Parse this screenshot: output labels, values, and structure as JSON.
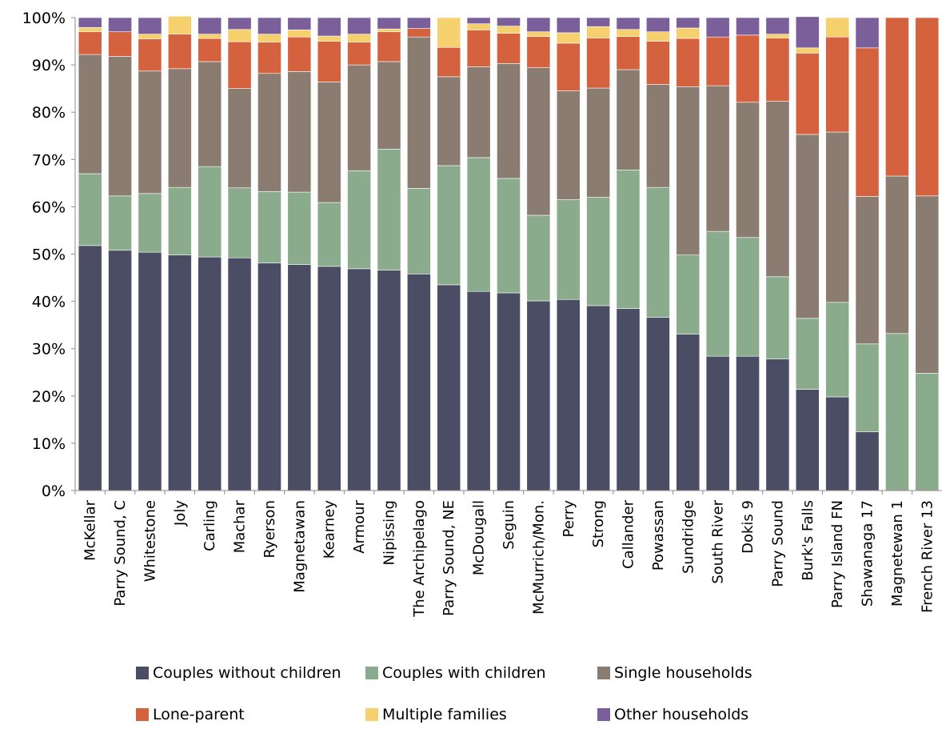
{
  "chart_data": {
    "type": "bar",
    "stacked": true,
    "percent": true,
    "title": "",
    "xlabel": "",
    "ylabel": "",
    "ylim": [
      0,
      100
    ],
    "yticks": [
      "0%",
      "10%",
      "20%",
      "30%",
      "40%",
      "50%",
      "60%",
      "70%",
      "80%",
      "90%",
      "100%"
    ],
    "grid": false,
    "legend_position": "bottom",
    "categories": [
      "McKellar",
      "Parry Sound, C",
      "Whitestone",
      "Joly",
      "Carling",
      "Machar",
      "Ryerson",
      "Magnetawan",
      "Kearney",
      "Armour",
      "Nipissing",
      "The Archipelago",
      "Parry Sound, NE",
      "McDougall",
      "Seguin",
      "McMurrich/Mon.",
      "Perry",
      "Strong",
      "Callander",
      "Powassan",
      "Sundridge",
      "South River",
      "Dokis 9",
      "Parry Sound",
      "Burk's Falls",
      "Parry Island FN",
      "Shawanaga 17",
      "Magnetewan 1",
      "French River 13"
    ],
    "series": [
      {
        "name": "Couples without children",
        "color": "#4a4d63",
        "values": [
          51.8,
          50.8,
          50.4,
          49.8,
          49.4,
          49.2,
          48.1,
          47.8,
          47.4,
          46.9,
          46.6,
          45.8,
          43.5,
          42.1,
          41.8,
          40.1,
          40.4,
          39.1,
          38.5,
          36.6,
          33.1,
          28.4,
          28.4,
          27.8,
          21.4,
          19.8,
          12.4,
          0,
          0
        ]
      },
      {
        "name": "Couples with children",
        "color": "#8aac8c",
        "values": [
          15.2,
          11.5,
          12.4,
          14.3,
          19.1,
          14.8,
          15.1,
          15.3,
          13.5,
          20.7,
          25.6,
          18.1,
          25.2,
          28.3,
          24.2,
          18.1,
          21.1,
          22.9,
          29.3,
          27.5,
          16.7,
          26.4,
          25.1,
          17.4,
          15.0,
          20.0,
          18.6,
          33.2,
          24.8
        ]
      },
      {
        "name": "Single households",
        "color": "#8b7c71",
        "values": [
          25.2,
          29.5,
          25.9,
          25.1,
          22.2,
          21.0,
          25.0,
          25.5,
          25.5,
          22.4,
          18.5,
          32.0,
          18.8,
          19.2,
          24.3,
          31.2,
          23.0,
          23.1,
          21.2,
          21.8,
          35.6,
          30.8,
          28.6,
          37.1,
          38.9,
          36.0,
          31.2,
          33.3,
          37.5
        ]
      },
      {
        "name": "Lone-parent",
        "color": "#d4623f",
        "values": [
          4.8,
          5.2,
          6.8,
          7.3,
          4.9,
          9.9,
          6.6,
          7.3,
          8.6,
          4.8,
          6.3,
          1.8,
          6.2,
          7.8,
          6.4,
          6.6,
          10.1,
          10.6,
          7.0,
          9.1,
          10.2,
          10.3,
          14.2,
          13.4,
          17.2,
          20.1,
          31.4,
          33.5,
          37.7
        ]
      },
      {
        "name": "Multiple families",
        "color": "#f6d06d",
        "values": [
          0.9,
          0,
          1.0,
          3.8,
          0.9,
          2.6,
          1.7,
          1.5,
          1.1,
          1.7,
          0.6,
          0,
          6.3,
          1.3,
          1.5,
          1.0,
          2.2,
          2.4,
          1.5,
          2.0,
          2.2,
          0,
          0,
          0.8,
          1.1,
          4.1,
          0,
          0,
          0
        ]
      },
      {
        "name": "Other households",
        "color": "#7a5f9a",
        "values": [
          2.1,
          3.0,
          3.5,
          0,
          3.5,
          2.5,
          3.5,
          2.6,
          3.9,
          3.5,
          2.4,
          2.3,
          0,
          1.3,
          1.8,
          3.0,
          3.2,
          1.9,
          2.5,
          3.0,
          2.2,
          4.1,
          3.7,
          3.5,
          6.6,
          0,
          6.4,
          0,
          0
        ]
      }
    ]
  }
}
